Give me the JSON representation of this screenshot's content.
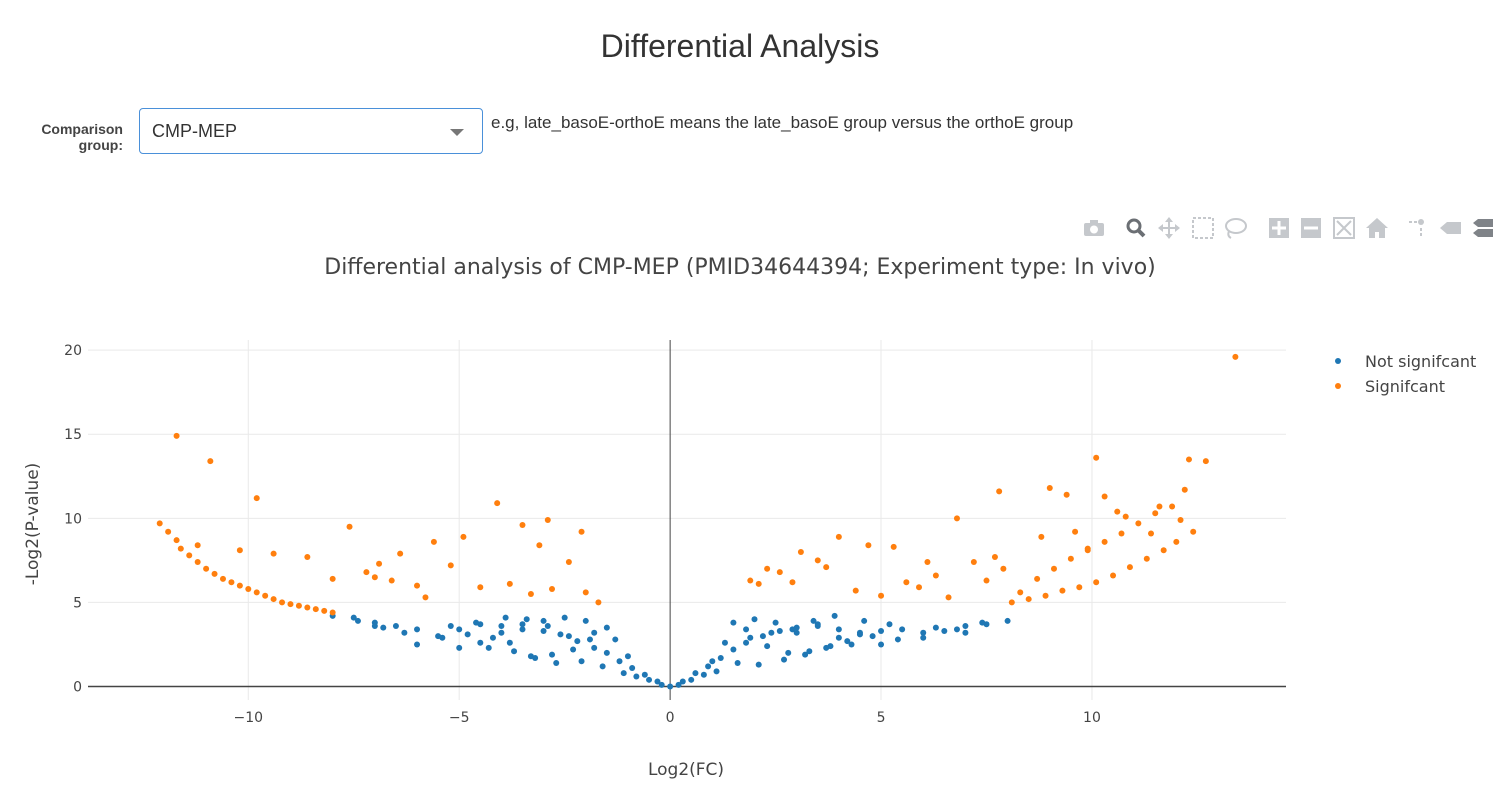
{
  "page": {
    "title": "Differential Analysis"
  },
  "form": {
    "label": "Comparison group:",
    "selected": "CMP-MEP",
    "hint": "e.g, late_basoE-orthoE means the late_basoE group versus the orthoE group"
  },
  "modebar": {
    "icons": [
      "camera-icon",
      "zoom-icon",
      "pan-icon",
      "box-select-icon",
      "lasso-icon",
      "zoom-in-icon",
      "zoom-out-icon",
      "autoscale-icon",
      "reset-axes-icon",
      "spike-lines-icon",
      "hover-closest-icon",
      "hover-compare-icon"
    ]
  },
  "colors": {
    "not_significant": "#1f77b4",
    "significant": "#ff7f0e",
    "grid": "#e9e9e9"
  },
  "chart_data": {
    "type": "scatter",
    "title": "Differential analysis of CMP-MEP (PMID34644394; Experiment type: In vivo)",
    "xlabel": "Log2(FC)",
    "ylabel": "-Log2(P-value)",
    "xlim": [
      -13.8,
      14.6
    ],
    "ylim": [
      -0.8,
      20.6
    ],
    "x_ticks": [
      -10,
      -5,
      0,
      5,
      10
    ],
    "y_ticks": [
      0,
      5,
      10,
      15,
      20
    ],
    "x_tick_labels": [
      "−10",
      "−5",
      "0",
      "5",
      "10"
    ],
    "y_tick_labels": [
      "0",
      "5",
      "10",
      "15",
      "20"
    ],
    "grid": true,
    "legend_position": "top-right",
    "series": [
      {
        "name": "Not signifcant",
        "color": "#1f77b4",
        "x": [
          0,
          -0.3,
          0.3,
          -0.6,
          0.6,
          -0.9,
          0.9,
          -1.2,
          1.2,
          -1.5,
          1.5,
          -1.8,
          1.8,
          -2.2,
          2.2,
          -2.6,
          2.6,
          -3,
          3,
          -3.5,
          3.5,
          -4,
          4,
          -4.5,
          4.5,
          -5,
          5,
          -5.5,
          5.5,
          -6,
          6,
          -6.5,
          6.5,
          -7,
          7,
          -7.5,
          7.5,
          -8,
          8,
          -1,
          1,
          -1.5,
          1.5,
          -2,
          2,
          -2.5,
          2.5,
          -3,
          3,
          -3.5,
          3.5,
          -4,
          4,
          -4.5,
          4.5,
          -5,
          5,
          -6,
          6,
          -7,
          7,
          -1.3,
          1.3,
          -1.8,
          1.8,
          -2.3,
          2.3,
          -2.8,
          2.8,
          -3.3,
          3.3,
          -3.8,
          3.8,
          -4.2,
          4.2,
          -4.8,
          4.8,
          -5.4,
          5.4,
          -6.3,
          6.3,
          -6.8,
          6.8,
          -7.4,
          7.4,
          -1.6,
          1.6,
          -2.1,
          2.1,
          -2.7,
          2.7,
          -3.2,
          3.2,
          -3.7,
          3.7,
          -4.3,
          4.3,
          -1.1,
          1.1,
          -0.8,
          0.8,
          -0.5,
          0.5,
          -0.2,
          0.2,
          -1.9,
          1.9,
          -2.4,
          2.4,
          -2.9,
          2.9,
          -3.4,
          3.4,
          -3.9,
          3.9,
          -4.6,
          4.6,
          -5.2,
          5.2
        ],
        "y": [
          0,
          0.3,
          0.3,
          0.7,
          0.8,
          1.1,
          1.2,
          1.5,
          1.7,
          2,
          2.2,
          2.3,
          2.6,
          2.7,
          3,
          3.1,
          3.3,
          3.3,
          3.5,
          3.4,
          3.6,
          3.6,
          3.4,
          3.7,
          3.2,
          3.4,
          3.3,
          3,
          3.4,
          3.4,
          3.2,
          3.6,
          3.3,
          3.8,
          3.6,
          4.1,
          3.7,
          4.2,
          3.9,
          1.8,
          1.5,
          3.5,
          3.8,
          3.9,
          4,
          4.1,
          3.8,
          3.9,
          3.2,
          3.7,
          3.7,
          3.2,
          2.9,
          2.6,
          3.1,
          2.3,
          2.5,
          2.5,
          2.9,
          3.6,
          3.2,
          2.8,
          2.6,
          3.2,
          3.4,
          2.2,
          2.4,
          1.9,
          2,
          1.8,
          2.1,
          2.6,
          2.4,
          2.9,
          2.7,
          3.1,
          3,
          2.9,
          2.8,
          3.2,
          3.5,
          3.5,
          3.4,
          3.9,
          3.8,
          1.2,
          1.4,
          1.5,
          1.3,
          1.4,
          1.6,
          1.7,
          1.9,
          2.1,
          2.3,
          2.3,
          2.5,
          0.8,
          0.9,
          0.6,
          0.7,
          0.4,
          0.4,
          0.1,
          0.1,
          2.8,
          2.9,
          3,
          3.2,
          3.6,
          3.4,
          4,
          3.9,
          4.1,
          4.2,
          3.8,
          3.9,
          3.6,
          3.7
        ]
      },
      {
        "name": "Signifcant",
        "color": "#ff7f0e",
        "x": [
          -12.1,
          -11.9,
          -11.7,
          -11.6,
          -11.4,
          -11.2,
          -11,
          -10.8,
          -10.6,
          -10.4,
          -10.2,
          -10,
          -9.8,
          -9.6,
          -9.4,
          -9.2,
          -9,
          -8.8,
          -8.6,
          -8.4,
          -8.2,
          -8,
          -11.7,
          -10.9,
          -9.8,
          -7.6,
          -4.1,
          -3.5,
          -2.9,
          -2.1,
          -4.9,
          -6.4,
          -5.6,
          -6.9,
          -3.1,
          -2.4,
          -5.2,
          -7.2,
          -8.6,
          -9.4,
          -10.2,
          -11.2,
          -3.8,
          -4.5,
          -6,
          -7,
          -8,
          -2.8,
          -2,
          -1.7,
          -3.3,
          -5.8,
          -6.6,
          13.4,
          12.7,
          12.3,
          10.1,
          10.3,
          9.0,
          9.4,
          7.8,
          6.8,
          4,
          3.1,
          4.7,
          1.9,
          2.1,
          2.3,
          2.9,
          3.5,
          5.3,
          6.1,
          7.2,
          8.1,
          8.5,
          8.9,
          9.3,
          9.7,
          10.1,
          10.5,
          10.9,
          11.3,
          11.7,
          12,
          12.4,
          8.3,
          8.7,
          9.1,
          9.5,
          9.9,
          10.3,
          10.7,
          11.1,
          11.5,
          11.9,
          12.2,
          7.5,
          7.9,
          6.6,
          5.9,
          5,
          4.4,
          3.7,
          2.6,
          6.3,
          5.6,
          9.6,
          10.6,
          11.4,
          12.1,
          10.8,
          11.6,
          9.9,
          8.8,
          7.7
        ],
        "y": [
          9.7,
          9.2,
          8.7,
          8.2,
          7.8,
          7.4,
          7,
          6.7,
          6.4,
          6.2,
          6,
          5.8,
          5.6,
          5.4,
          5.2,
          5,
          4.9,
          4.8,
          4.7,
          4.6,
          4.5,
          4.4,
          14.9,
          13.4,
          11.2,
          9.5,
          10.9,
          9.6,
          9.9,
          9.2,
          8.9,
          7.9,
          8.6,
          7.3,
          8.4,
          7.4,
          7.2,
          6.8,
          7.7,
          7.9,
          8.1,
          8.4,
          6.1,
          5.9,
          6,
          6.5,
          6.4,
          5.8,
          5.6,
          5,
          5.5,
          5.3,
          6.3,
          19.6,
          13.4,
          13.5,
          13.6,
          11.3,
          11.8,
          11.4,
          11.6,
          10,
          8.9,
          8,
          8.4,
          6.3,
          6.1,
          7,
          6.2,
          7.5,
          8.3,
          7.4,
          7.4,
          5,
          5.2,
          5.4,
          5.7,
          5.9,
          6.2,
          6.6,
          7.1,
          7.6,
          8.1,
          8.6,
          9.2,
          5.6,
          6.4,
          7,
          7.6,
          8.1,
          8.6,
          9.1,
          9.7,
          10.3,
          10.7,
          11.7,
          6.3,
          7,
          5.3,
          5.9,
          5.4,
          5.7,
          7.1,
          6.8,
          6.6,
          6.2,
          9.2,
          10.4,
          9.1,
          9.9,
          10.1,
          10.7,
          8.2,
          8.9,
          7.7
        ]
      }
    ]
  }
}
